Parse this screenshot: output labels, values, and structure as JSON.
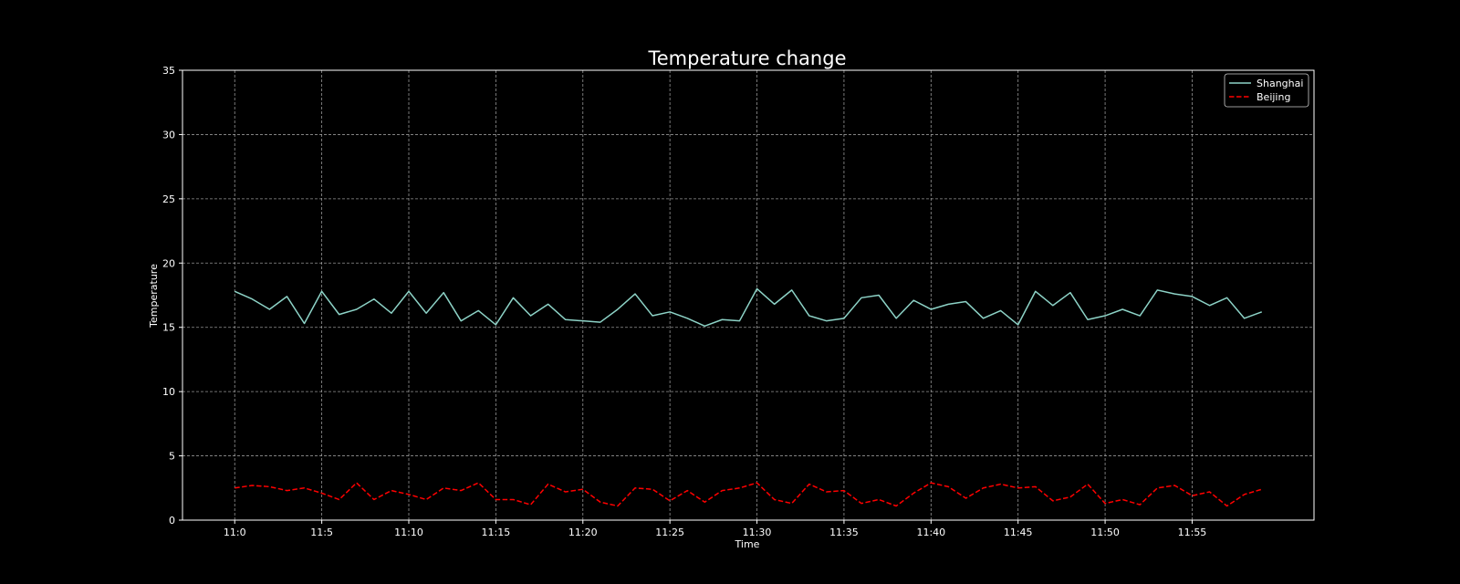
{
  "chart_data": {
    "type": "line",
    "title": "Temperature change",
    "xlabel": "Time",
    "ylabel": "Temperature",
    "ylim": [
      0,
      35
    ],
    "y_ticks": [
      0,
      5,
      10,
      15,
      20,
      25,
      30,
      35
    ],
    "x_ticks": [
      "11:0",
      "11:5",
      "11:10",
      "11:15",
      "11:20",
      "11:25",
      "11:30",
      "11:35",
      "11:40",
      "11:45",
      "11:50",
      "11:55"
    ],
    "x": [
      "11:0",
      "11:1",
      "11:2",
      "11:3",
      "11:4",
      "11:5",
      "11:6",
      "11:7",
      "11:8",
      "11:9",
      "11:10",
      "11:11",
      "11:12",
      "11:13",
      "11:14",
      "11:15",
      "11:16",
      "11:17",
      "11:18",
      "11:19",
      "11:20",
      "11:21",
      "11:22",
      "11:23",
      "11:24",
      "11:25",
      "11:26",
      "11:27",
      "11:28",
      "11:29",
      "11:30",
      "11:31",
      "11:32",
      "11:33",
      "11:34",
      "11:35",
      "11:36",
      "11:37",
      "11:38",
      "11:39",
      "11:40",
      "11:41",
      "11:42",
      "11:43",
      "11:44",
      "11:45",
      "11:46",
      "11:47",
      "11:48",
      "11:49",
      "11:50",
      "11:51",
      "11:52",
      "11:53",
      "11:54",
      "11:55",
      "11:56",
      "11:57",
      "11:58",
      "11:59"
    ],
    "grid": true,
    "legend_position": "top-right",
    "series": [
      {
        "name": "Shanghai",
        "color": "#8dd3c7",
        "style": "solid",
        "values": [
          17.8,
          17.2,
          16.4,
          17.4,
          15.3,
          17.8,
          16.0,
          16.4,
          17.2,
          16.1,
          17.8,
          16.1,
          17.7,
          15.5,
          16.3,
          15.2,
          17.3,
          15.9,
          16.8,
          15.6,
          15.5,
          15.4,
          16.4,
          17.6,
          15.9,
          16.2,
          15.7,
          15.1,
          15.6,
          15.5,
          18.0,
          16.8,
          17.9,
          15.9,
          15.5,
          15.7,
          17.3,
          17.5,
          15.7,
          17.1,
          16.4,
          16.8,
          17.0,
          15.7,
          16.3,
          15.2,
          17.8,
          16.7,
          17.7,
          15.6,
          15.9,
          16.4,
          15.9,
          17.9,
          17.6,
          17.4,
          16.7,
          17.3,
          15.7,
          16.2
        ]
      },
      {
        "name": "Beijing",
        "color": "#ff0000",
        "style": "dashed",
        "values": [
          2.5,
          2.7,
          2.6,
          2.3,
          2.5,
          2.1,
          1.6,
          2.9,
          1.6,
          2.3,
          2.0,
          1.6,
          2.5,
          2.3,
          2.9,
          1.6,
          1.6,
          1.2,
          2.8,
          2.2,
          2.4,
          1.4,
          1.1,
          2.5,
          2.4,
          1.5,
          2.3,
          1.4,
          2.3,
          2.5,
          2.9,
          1.6,
          1.3,
          2.8,
          2.2,
          2.3,
          1.3,
          1.6,
          1.1,
          2.1,
          2.9,
          2.6,
          1.7,
          2.5,
          2.8,
          2.5,
          2.6,
          1.5,
          1.8,
          2.8,
          1.3,
          1.6,
          1.2,
          2.5,
          2.7,
          1.9,
          2.2,
          1.1,
          2.0,
          2.4
        ]
      }
    ]
  }
}
